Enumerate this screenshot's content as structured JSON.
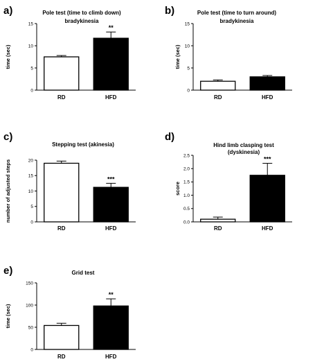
{
  "chart_data": [
    {
      "panel": "a)",
      "type": "bar",
      "title": "Pole test (time to climb down)",
      "subtitle": "bradykinesia",
      "ylabel": "time (sec)",
      "categories": [
        "RD",
        "HFD"
      ],
      "values": [
        7.5,
        11.7
      ],
      "errors": [
        0.3,
        1.4
      ],
      "fills": [
        "#ffffff",
        "#000000"
      ],
      "significance": [
        "",
        "**"
      ],
      "ylim": [
        0,
        15
      ],
      "yticks": [
        0,
        5,
        10,
        15
      ]
    },
    {
      "panel": "b)",
      "type": "bar",
      "title": "Pole test (time to turn around)",
      "subtitle": "bradykinesia",
      "ylabel": "time (sec)",
      "categories": [
        "RD",
        "HFD"
      ],
      "values": [
        2.0,
        3.0
      ],
      "errors": [
        0.3,
        0.3
      ],
      "fills": [
        "#ffffff",
        "#000000"
      ],
      "significance": [
        "",
        ""
      ],
      "ylim": [
        0,
        15
      ],
      "yticks": [
        0,
        5,
        10,
        15
      ]
    },
    {
      "panel": "c)",
      "type": "bar",
      "title": "Stepping test (akinesia)",
      "subtitle": "",
      "ylabel": "number of adjusted steps",
      "categories": [
        "RD",
        "HFD"
      ],
      "values": [
        19,
        11.2
      ],
      "errors": [
        0.7,
        1.3
      ],
      "fills": [
        "#ffffff",
        "#000000"
      ],
      "significance": [
        "",
        "***"
      ],
      "ylim": [
        0,
        20
      ],
      "yticks": [
        0,
        5,
        10,
        15,
        20
      ]
    },
    {
      "panel": "d)",
      "type": "bar",
      "title": "Hind limb clasping test",
      "subtitle": "(dyskinesia)",
      "ylabel": "score",
      "categories": [
        "RD",
        "HFD"
      ],
      "values": [
        0.1,
        1.75
      ],
      "errors": [
        0.08,
        0.45
      ],
      "fills": [
        "#ffffff",
        "#000000"
      ],
      "significance": [
        "",
        "***"
      ],
      "ylim": [
        0,
        2.5
      ],
      "yticks": [
        "0.0",
        "0.5",
        "1.0",
        "1.5",
        "2.0",
        "2.5"
      ]
    },
    {
      "panel": "e)",
      "type": "bar",
      "title": "Grid test",
      "subtitle": "",
      "ylabel": "time (sec)",
      "categories": [
        "RD",
        "HFD"
      ],
      "values": [
        54,
        98
      ],
      "errors": [
        5,
        16
      ],
      "fills": [
        "#ffffff",
        "#000000"
      ],
      "significance": [
        "",
        "**"
      ],
      "ylim": [
        0,
        150
      ],
      "yticks": [
        0,
        50,
        100,
        150
      ]
    }
  ]
}
